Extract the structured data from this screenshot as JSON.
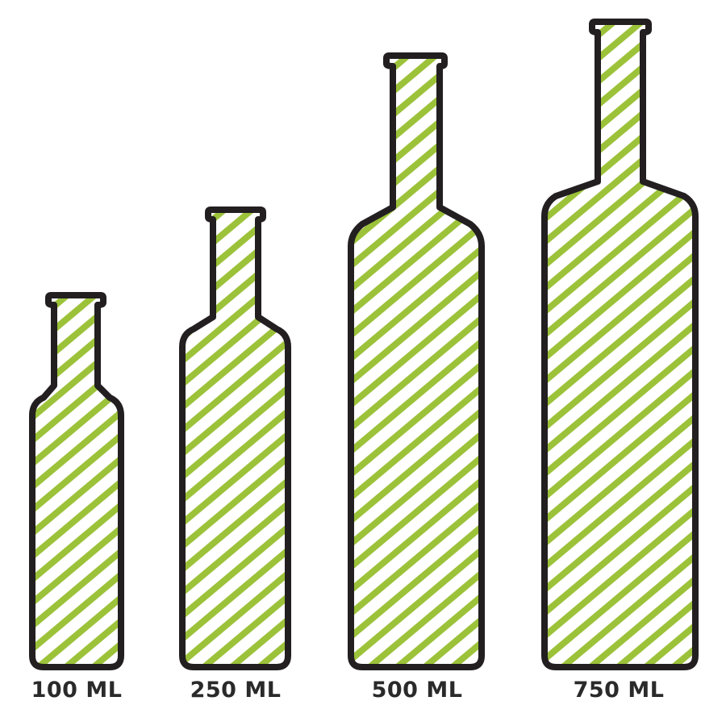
{
  "colors": {
    "outline": "#231f20",
    "stripe": "#9cc23a",
    "fill": "#ffffff"
  },
  "bottles": [
    {
      "label": "100 ML"
    },
    {
      "label": "250 ML"
    },
    {
      "label": "500 ML"
    },
    {
      "label": "750 ML"
    }
  ]
}
